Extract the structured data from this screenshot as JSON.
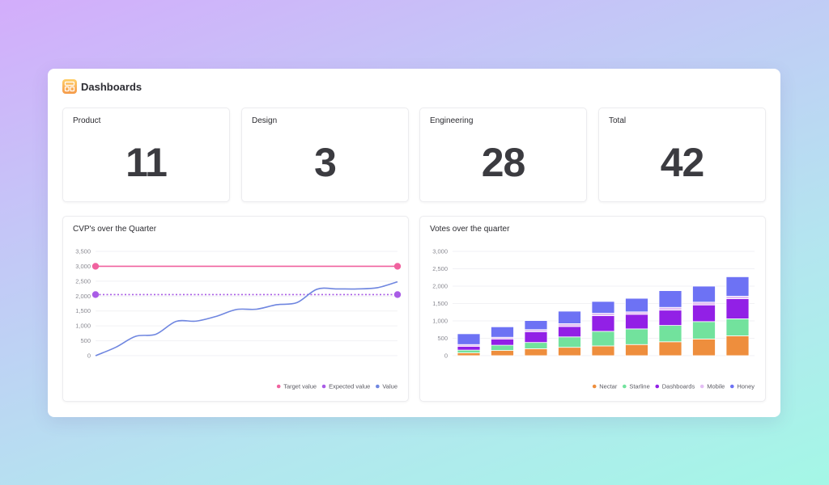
{
  "app": {
    "title": "Dashboards"
  },
  "colors": {
    "accent_target": "#f0629f",
    "accent_expected": "#a95ce6",
    "accent_value": "#6f86e0",
    "nectar": "#ee8e3d",
    "starline": "#72e29d",
    "dashboards": "#9220e6",
    "mobile": "#e3bdf4",
    "honey": "#6d72f4"
  },
  "stats": [
    {
      "label": "Product",
      "value": "11"
    },
    {
      "label": "Design",
      "value": "3"
    },
    {
      "label": "Engineering",
      "value": "28"
    },
    {
      "label": "Total",
      "value": "42"
    }
  ],
  "chart_data": [
    {
      "type": "line",
      "title": "CVP's over the Quarter",
      "ylim": [
        0,
        3500
      ],
      "yticks": [
        "3,500",
        "3,000",
        "2,500",
        "2,000",
        "1,500",
        "1,000",
        "500",
        "0"
      ],
      "grid": true,
      "legend_position": "bottom-right",
      "series": [
        {
          "name": "Target value",
          "values": [
            3000,
            3000
          ]
        },
        {
          "name": "Expected value",
          "values": [
            2050,
            2050
          ]
        },
        {
          "name": "Value",
          "values": [
            0,
            280,
            650,
            720,
            1150,
            1160,
            1320,
            1550,
            1560,
            1710,
            1780,
            2230,
            2240,
            2240,
            2280,
            2480
          ]
        }
      ]
    },
    {
      "type": "bar",
      "stacked": true,
      "title": "Votes over the quarter",
      "ylim": [
        0,
        3000
      ],
      "yticks": [
        "3,000",
        "2,500",
        "2,000",
        "1,500",
        "1,000",
        "500",
        "0"
      ],
      "grid": true,
      "legend_position": "bottom-right",
      "series": [
        {
          "name": "Nectar",
          "values": [
            80,
            150,
            200,
            240,
            280,
            320,
            400,
            480,
            570
          ]
        },
        {
          "name": "Starline",
          "values": [
            80,
            150,
            180,
            300,
            420,
            450,
            470,
            500,
            490
          ]
        },
        {
          "name": "Dashboards",
          "values": [
            110,
            180,
            310,
            300,
            450,
            420,
            440,
            480,
            580
          ]
        },
        {
          "name": "Mobile",
          "values": [
            50,
            50,
            60,
            80,
            70,
            70,
            80,
            80,
            70
          ]
        },
        {
          "name": "Honey",
          "values": [
            310,
            300,
            260,
            360,
            340,
            390,
            480,
            460,
            560
          ]
        }
      ]
    }
  ]
}
